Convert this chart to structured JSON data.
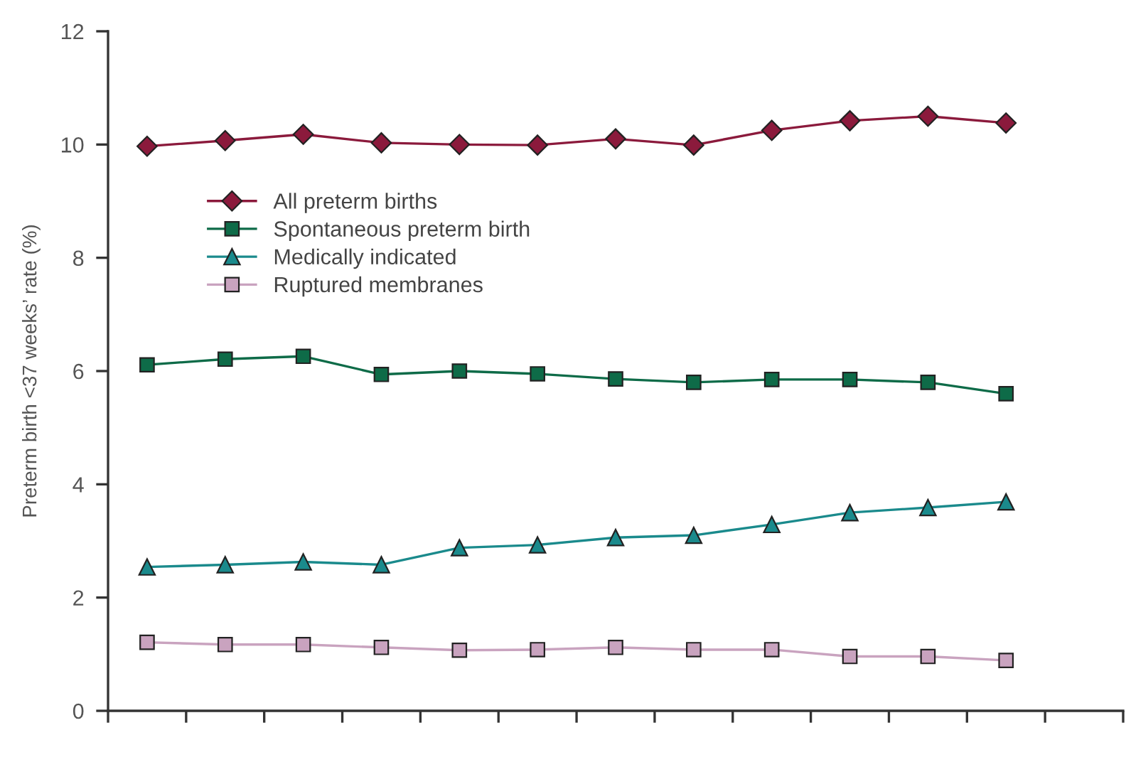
{
  "chart_data": {
    "type": "line",
    "ylabel": "Preterm birth <37 weeks’ rate (%)",
    "categories": [
      null,
      null,
      null,
      null,
      null,
      null,
      null,
      null,
      null,
      null,
      null,
      null,
      null
    ],
    "ylim": [
      0,
      12
    ],
    "yticks": [
      0,
      2,
      4,
      6,
      8,
      10,
      12
    ],
    "tick_labels": "y",
    "legend": "top left",
    "line_style": "solid",
    "series": [
      {
        "name": "All preterm births",
        "color": "#8b1a3c",
        "marker": "diamond",
        "values": [
          9.97,
          10.07,
          10.18,
          10.03,
          10.0,
          9.99,
          10.1,
          9.99,
          10.25,
          10.42,
          10.5,
          10.38,
          null
        ]
      },
      {
        "name": "Spontaneous preterm birth",
        "color": "#0e6b48",
        "marker": "square",
        "values": [
          6.11,
          6.21,
          6.26,
          5.94,
          6.0,
          5.95,
          5.86,
          5.8,
          5.85,
          5.85,
          5.8,
          5.6,
          null
        ]
      },
      {
        "name": "Medically indicated",
        "color": "#1a8a8c",
        "marker": "triangle",
        "values": [
          2.54,
          2.58,
          2.63,
          2.58,
          2.88,
          2.93,
          3.06,
          3.1,
          3.29,
          3.5,
          3.59,
          3.69,
          null
        ]
      },
      {
        "name": "Ruptured membranes",
        "color": "#c9a3bf",
        "marker": "square",
        "values": [
          1.21,
          1.17,
          1.17,
          1.12,
          1.07,
          1.08,
          1.12,
          1.08,
          1.08,
          0.96,
          0.96,
          0.89,
          null
        ]
      }
    ]
  }
}
